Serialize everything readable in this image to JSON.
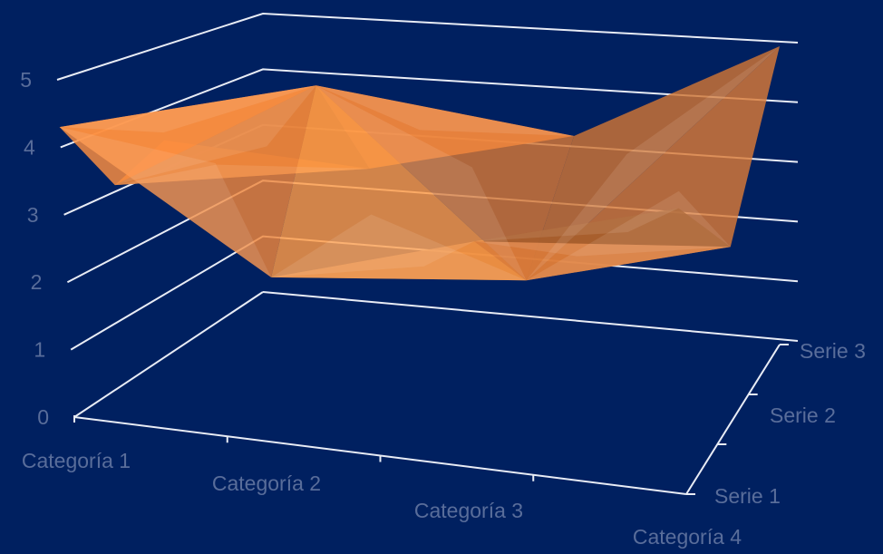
{
  "chart_data": {
    "type": "surface",
    "categories": [
      "Categoría 1",
      "Categoría 2",
      "Categoría 3",
      "Categoría 4"
    ],
    "series": [
      {
        "name": "Serie 1",
        "values": [
          4.3,
          2.5,
          3.5,
          4.5
        ]
      },
      {
        "name": "Serie 2",
        "values": [
          2.4,
          4.4,
          1.8,
          2.8
        ]
      },
      {
        "name": "Serie 3",
        "values": [
          2.0,
          2.0,
          3.0,
          5.0
        ]
      }
    ],
    "z_ticks": [
      "0",
      "1",
      "2",
      "3",
      "4",
      "5"
    ],
    "zlim": [
      0,
      5
    ],
    "grid": true,
    "colors": {
      "background": "#002060",
      "surface": "#ff8f40",
      "gridline": "#e8ecf5",
      "label": "#596d9a"
    }
  }
}
